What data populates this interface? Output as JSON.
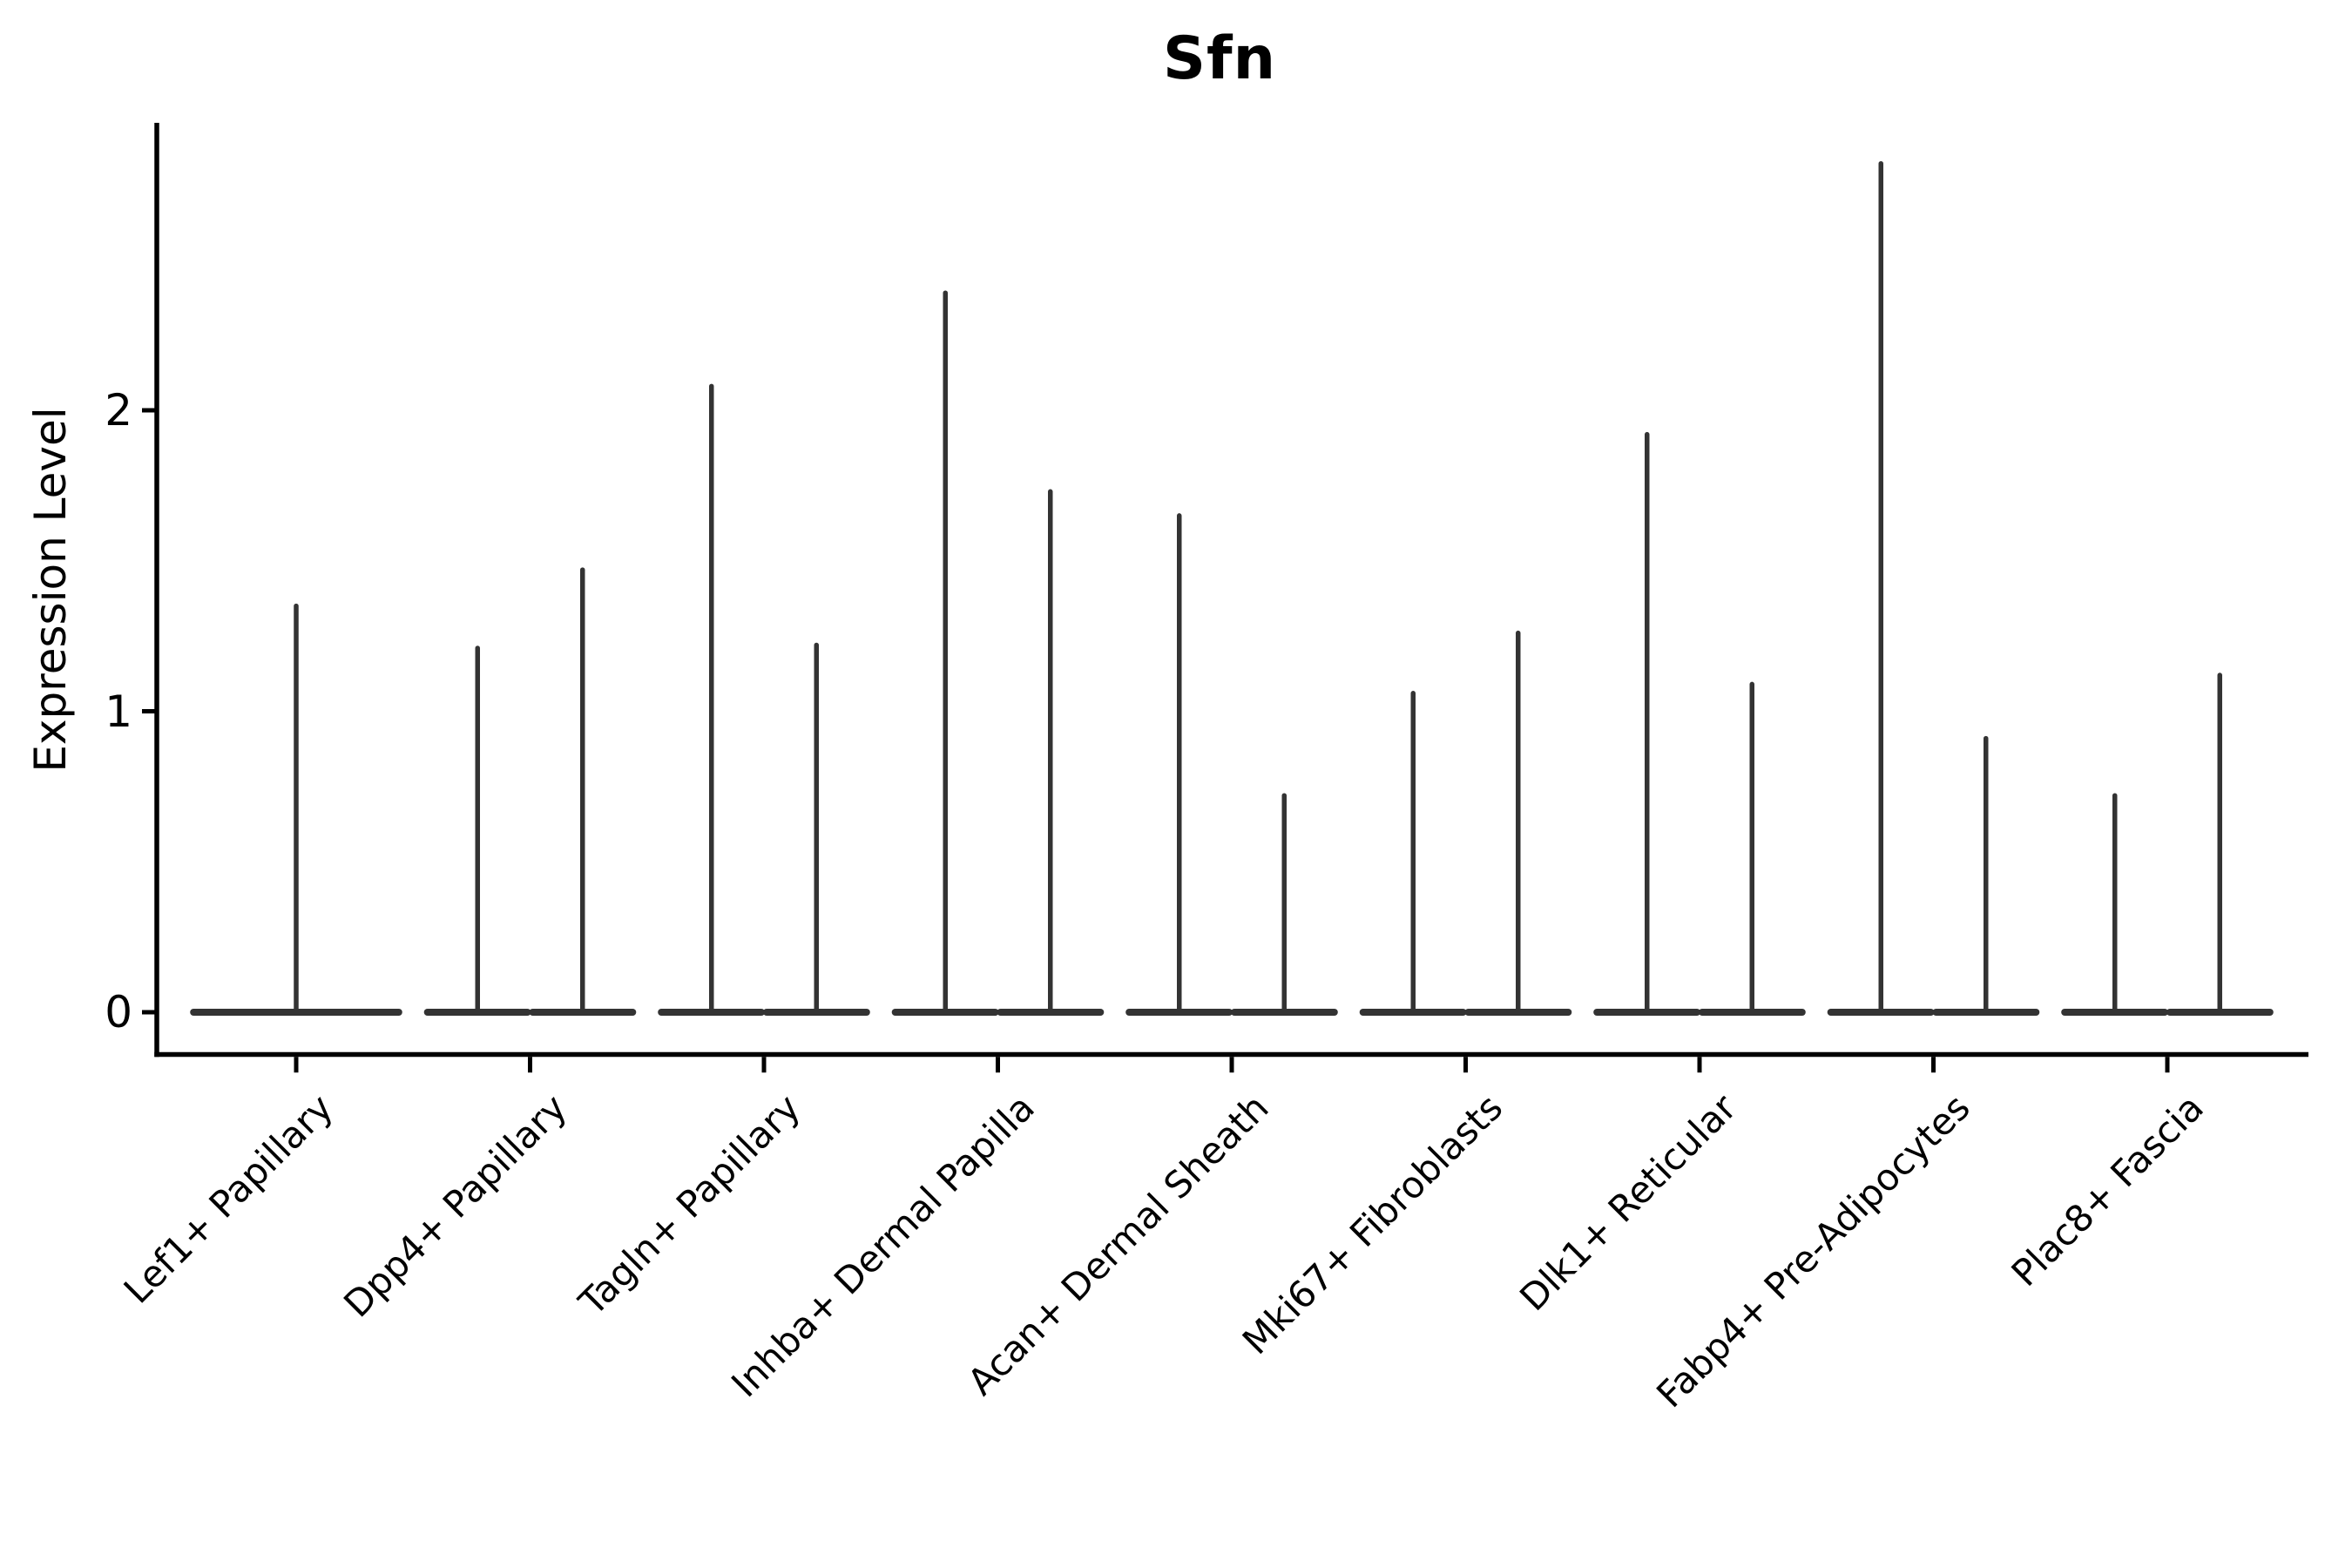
{
  "title": "Sfn",
  "y_axis": {
    "label": "Expression Level",
    "tick_labels": [
      "0",
      "1",
      "2"
    ]
  },
  "chart_data": {
    "type": "violin",
    "title": "Sfn",
    "xlabel": "",
    "ylabel": "Expression Level",
    "ylim": [
      0,
      2.95
    ],
    "yticks": [
      0,
      1,
      2
    ],
    "grid": false,
    "legend": "none",
    "categories": [
      "Lef1+ Papillary",
      "Dpp4+ Papillary",
      "Tagln+ Papillary",
      "Inhba+ Dermal Papilla",
      "Acan+ Dermal Sheath",
      "Mki67+ Fibroblasts",
      "Dlk1+ Reticular",
      "Fabp4+ Pre-Adipocytes",
      "Plac8+ Fascia"
    ],
    "violins_per_category": [
      1,
      2,
      2,
      2,
      2,
      2,
      2,
      2,
      2
    ],
    "spike_maxima": [
      [
        1.35
      ],
      [
        1.21,
        1.47
      ],
      [
        2.08,
        1.22
      ],
      [
        2.39,
        1.73
      ],
      [
        1.65,
        0.72
      ],
      [
        1.06,
        1.26
      ],
      [
        1.92,
        1.09
      ],
      [
        2.82,
        0.91
      ],
      [
        0.72,
        1.12
      ]
    ],
    "baseline_value": 0,
    "shape_note": "Each violin is collapsed into a flat bar at expression 0 with a thin vertical spike rising to its maximum value",
    "line_color": "#333333",
    "axis_color": "#000000"
  }
}
